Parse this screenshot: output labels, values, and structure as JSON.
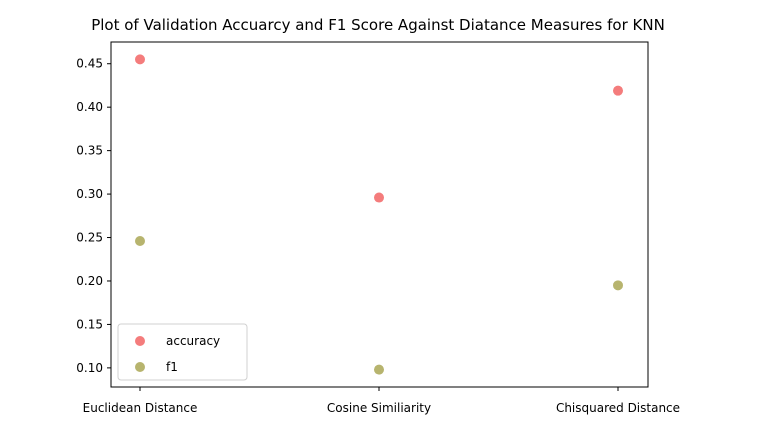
{
  "chart_data": {
    "type": "scatter",
    "title": "Plot of Validation Accuarcy and F1 Score Against Diatance Measures for KNN",
    "xlabel": "",
    "ylabel": "",
    "categories": [
      "Euclidean Distance",
      "Cosine Similiarity",
      "Chisquared Distance"
    ],
    "series": [
      {
        "name": "accuracy",
        "color": "#f47c7c",
        "values": [
          0.455,
          0.296,
          0.419
        ]
      },
      {
        "name": "f1",
        "color": "#b7b46e",
        "values": [
          0.246,
          0.098,
          0.195
        ]
      }
    ],
    "ylim": [
      0.078,
      0.475
    ],
    "yticks": [
      "0.10",
      "0.15",
      "0.20",
      "0.25",
      "0.30",
      "0.35",
      "0.40",
      "0.45"
    ],
    "grid": false,
    "legend": "lower-left"
  }
}
